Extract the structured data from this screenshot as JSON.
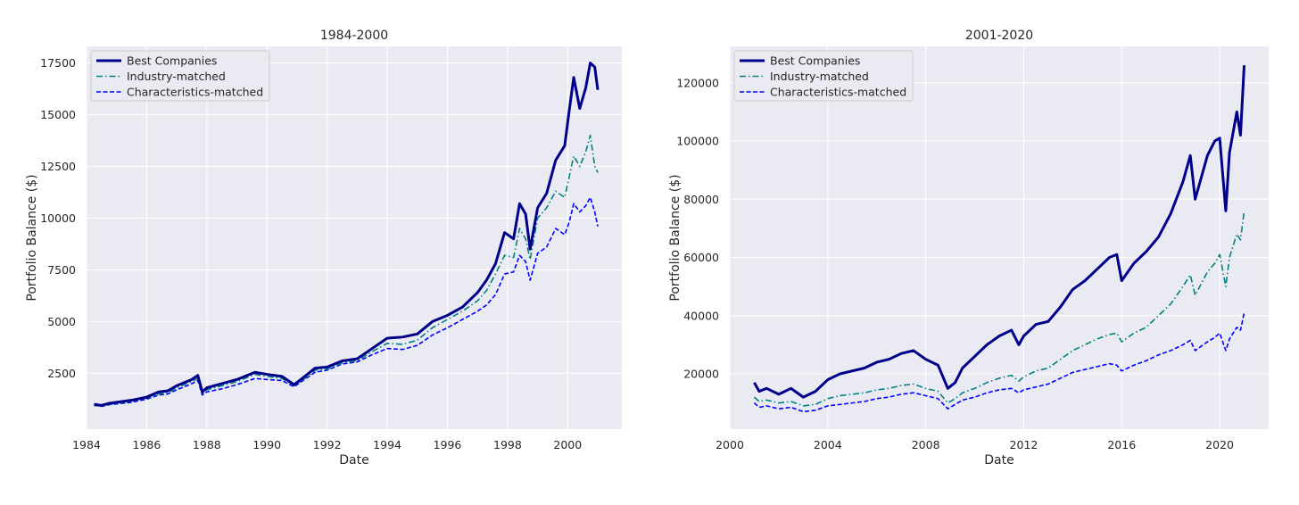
{
  "chart_data": [
    {
      "type": "line",
      "title": "1984-2000",
      "xlabel": "Date",
      "ylabel": "Portfolio Balance ($)",
      "xlim": [
        1984.0,
        2001.8
      ],
      "ylim": [
        -200,
        18300
      ],
      "xticks": [
        1984,
        1986,
        1988,
        1990,
        1992,
        1994,
        1996,
        1998,
        2000
      ],
      "yticks": [
        2500,
        5000,
        7500,
        10000,
        12500,
        15000,
        17500
      ],
      "grid": true,
      "legend": "upper-left",
      "series": [
        {
          "name": "Best Companies",
          "color": "#00008b",
          "style": "solid",
          "x": [
            1984.25,
            1984.5,
            1984.75,
            1985,
            1985.5,
            1986,
            1986.4,
            1986.7,
            1987,
            1987.5,
            1987.7,
            1987.85,
            1988,
            1988.5,
            1989,
            1989.6,
            1990,
            1990.5,
            1990.9,
            1991.3,
            1991.6,
            1992,
            1992.5,
            1993,
            1993.5,
            1994,
            1994.5,
            1995,
            1995.5,
            1996,
            1996.5,
            1997,
            1997.3,
            1997.6,
            1997.9,
            1998.2,
            1998.4,
            1998.6,
            1998.75,
            1999,
            1999.3,
            1999.6,
            1999.9,
            2000.05,
            2000.2,
            2000.4,
            2000.6,
            2000.75,
            2000.9,
            2001.0
          ],
          "y": [
            1000,
            950,
            1050,
            1100,
            1200,
            1350,
            1600,
            1650,
            1900,
            2200,
            2400,
            1600,
            1800,
            2000,
            2200,
            2550,
            2450,
            2350,
            1950,
            2400,
            2750,
            2800,
            3100,
            3200,
            3700,
            4200,
            4250,
            4400,
            5000,
            5300,
            5700,
            6400,
            7000,
            7800,
            9300,
            9000,
            10700,
            10200,
            8500,
            10500,
            11200,
            12800,
            13500,
            15200,
            16800,
            15300,
            16300,
            17500,
            17300,
            16200
          ]
        },
        {
          "name": "Industry-matched",
          "color": "#008080",
          "style": "dashdot",
          "x": [
            1984.25,
            1984.5,
            1984.75,
            1985,
            1985.5,
            1986,
            1986.4,
            1986.7,
            1987,
            1987.5,
            1987.7,
            1987.85,
            1988,
            1988.5,
            1989,
            1989.6,
            1990,
            1990.5,
            1990.9,
            1991.3,
            1991.6,
            1992,
            1992.5,
            1993,
            1993.5,
            1994,
            1994.5,
            1995,
            1995.5,
            1996,
            1996.5,
            1997,
            1997.3,
            1997.6,
            1997.9,
            1998.2,
            1998.4,
            1998.6,
            1998.75,
            1999,
            1999.3,
            1999.6,
            1999.9,
            2000.05,
            2000.2,
            2000.4,
            2000.6,
            2000.75,
            2000.9,
            2001.0
          ],
          "y": [
            950,
            920,
            1000,
            1050,
            1150,
            1300,
            1500,
            1550,
            1800,
            2100,
            2250,
            1500,
            1700,
            1900,
            2100,
            2450,
            2350,
            2250,
            1900,
            2300,
            2650,
            2700,
            3000,
            3100,
            3550,
            3950,
            3900,
            4100,
            4700,
            5100,
            5500,
            6000,
            6500,
            7300,
            8200,
            8100,
            9500,
            9000,
            8000,
            10000,
            10500,
            11300,
            11000,
            12000,
            13000,
            12500,
            13200,
            14000,
            12500,
            12200
          ]
        },
        {
          "name": "Characteristics-matched",
          "color": "#0000ff",
          "style": "dashed",
          "x": [
            1984.25,
            1984.5,
            1984.75,
            1985,
            1985.5,
            1986,
            1986.4,
            1986.7,
            1987,
            1987.5,
            1987.7,
            1987.85,
            1988,
            1988.5,
            1989,
            1989.6,
            1990,
            1990.5,
            1990.9,
            1991.3,
            1991.6,
            1992,
            1992.5,
            1993,
            1993.5,
            1994,
            1994.5,
            1995,
            1995.5,
            1996,
            1996.5,
            1997,
            1997.3,
            1997.6,
            1997.9,
            1998.2,
            1998.4,
            1998.6,
            1998.75,
            1999,
            1999.3,
            1999.6,
            1999.9,
            2000.05,
            2000.2,
            2000.4,
            2000.6,
            2000.75,
            2000.9,
            2001.0
          ],
          "y": [
            950,
            900,
            980,
            1020,
            1100,
            1250,
            1450,
            1500,
            1700,
            2000,
            2150,
            1450,
            1600,
            1750,
            1950,
            2250,
            2200,
            2150,
            1850,
            2250,
            2550,
            2650,
            2950,
            3050,
            3400,
            3700,
            3650,
            3850,
            4350,
            4700,
            5100,
            5500,
            5800,
            6300,
            7300,
            7400,
            8200,
            7900,
            7000,
            8300,
            8600,
            9500,
            9200,
            9800,
            10700,
            10300,
            10600,
            11000,
            10300,
            9600
          ]
        }
      ]
    },
    {
      "type": "line",
      "title": "2001-2020",
      "xlabel": "Date",
      "ylabel": "Portfolio Balance ($)",
      "xlim": [
        2000,
        2022
      ],
      "ylim": [
        1000,
        132500
      ],
      "xticks": [
        2000,
        2004,
        2008,
        2012,
        2016,
        2020
      ],
      "yticks": [
        20000,
        40000,
        60000,
        80000,
        100000,
        120000
      ],
      "grid": true,
      "legend": "upper-left",
      "series": [
        {
          "name": "Best Companies",
          "color": "#00008b",
          "style": "solid",
          "x": [
            2001.0,
            2001.2,
            2001.5,
            2002.0,
            2002.5,
            2003.0,
            2003.5,
            2004.0,
            2004.5,
            2005.0,
            2005.5,
            2006.0,
            2006.5,
            2007.0,
            2007.5,
            2008.0,
            2008.5,
            2008.9,
            2009.2,
            2009.5,
            2010.0,
            2010.5,
            2011.0,
            2011.5,
            2011.8,
            2012.0,
            2012.5,
            2013.0,
            2013.5,
            2014.0,
            2014.5,
            2015.0,
            2015.5,
            2015.8,
            2016.0,
            2016.5,
            2017.0,
            2017.5,
            2018.0,
            2018.5,
            2018.8,
            2019.0,
            2019.5,
            2019.8,
            2020.0,
            2020.25,
            2020.4,
            2020.7,
            2020.85,
            2021.0
          ],
          "y": [
            17000,
            14000,
            15000,
            13000,
            15000,
            12000,
            14000,
            18000,
            20000,
            21000,
            22000,
            24000,
            25000,
            27000,
            28000,
            25000,
            23000,
            15000,
            17000,
            22000,
            26000,
            30000,
            33000,
            35000,
            30000,
            33000,
            37000,
            38000,
            43000,
            49000,
            52000,
            56000,
            60000,
            61000,
            52000,
            58000,
            62000,
            67000,
            75000,
            86000,
            95000,
            80000,
            95000,
            100000,
            101000,
            76000,
            96000,
            110000,
            102000,
            126000
          ]
        },
        {
          "name": "Industry-matched",
          "color": "#008080",
          "style": "dashdot",
          "x": [
            2001.0,
            2001.2,
            2001.5,
            2002.0,
            2002.5,
            2003.0,
            2003.5,
            2004.0,
            2004.5,
            2005.0,
            2005.5,
            2006.0,
            2006.5,
            2007.0,
            2007.5,
            2008.0,
            2008.5,
            2008.9,
            2009.2,
            2009.5,
            2010.0,
            2010.5,
            2011.0,
            2011.5,
            2011.8,
            2012.0,
            2012.5,
            2013.0,
            2013.5,
            2014.0,
            2014.5,
            2015.0,
            2015.5,
            2015.8,
            2016.0,
            2016.5,
            2017.0,
            2017.5,
            2018.0,
            2018.5,
            2018.8,
            2019.0,
            2019.5,
            2019.8,
            2020.0,
            2020.25,
            2020.4,
            2020.7,
            2020.85,
            2021.0
          ],
          "y": [
            12000,
            10500,
            11000,
            10000,
            10500,
            9000,
            9500,
            11500,
            12500,
            13000,
            13500,
            14500,
            15000,
            16000,
            16500,
            15000,
            14000,
            10000,
            11500,
            13500,
            15000,
            17000,
            18500,
            19500,
            17500,
            19000,
            21000,
            22000,
            25000,
            28000,
            30000,
            32000,
            33500,
            34000,
            31000,
            34000,
            36000,
            40000,
            44000,
            50000,
            54000,
            47000,
            55000,
            58000,
            61000,
            50000,
            60000,
            68000,
            66000,
            76000
          ]
        },
        {
          "name": "Characteristics-matched",
          "color": "#0000ff",
          "style": "dashed",
          "x": [
            2001.0,
            2001.2,
            2001.5,
            2002.0,
            2002.5,
            2003.0,
            2003.5,
            2004.0,
            2004.5,
            2005.0,
            2005.5,
            2006.0,
            2006.5,
            2007.0,
            2007.5,
            2008.0,
            2008.5,
            2008.9,
            2009.2,
            2009.5,
            2010.0,
            2010.5,
            2011.0,
            2011.5,
            2011.8,
            2012.0,
            2012.5,
            2013.0,
            2013.5,
            2014.0,
            2014.5,
            2015.0,
            2015.5,
            2015.8,
            2016.0,
            2016.5,
            2017.0,
            2017.5,
            2018.0,
            2018.5,
            2018.8,
            2019.0,
            2019.5,
            2019.8,
            2020.0,
            2020.25,
            2020.4,
            2020.7,
            2020.85,
            2021.0
          ],
          "y": [
            10000,
            8500,
            9000,
            8000,
            8500,
            7000,
            7500,
            9000,
            9500,
            10000,
            10500,
            11500,
            12000,
            13000,
            13500,
            12500,
            11500,
            8000,
            9500,
            11000,
            12000,
            13500,
            14500,
            15000,
            13500,
            14500,
            15500,
            16500,
            18500,
            20500,
            21500,
            22500,
            23500,
            23000,
            21000,
            23000,
            24500,
            26500,
            28000,
            30000,
            31500,
            28000,
            31000,
            32500,
            34000,
            28000,
            32000,
            36000,
            35000,
            41000
          ]
        }
      ]
    }
  ]
}
